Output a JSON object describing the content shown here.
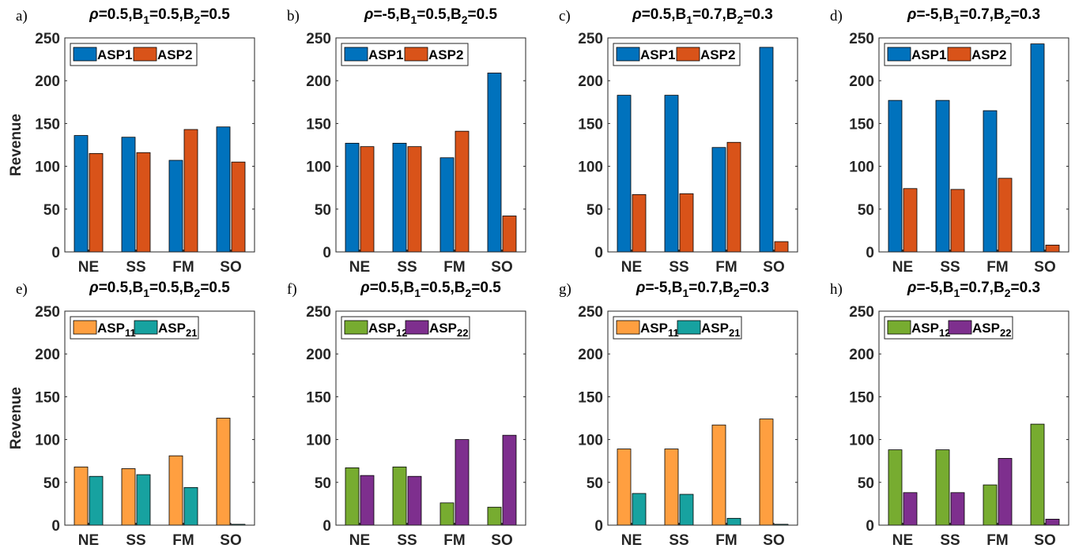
{
  "figure": {
    "ylabel": "Revenue",
    "categories": [
      "NE",
      "SS",
      "FM",
      "SO"
    ],
    "ylim": [
      0,
      250
    ],
    "yticks": [
      "0",
      "50",
      "100",
      "150",
      "200",
      "250"
    ]
  },
  "colors": {
    "ASP1": "#0072BD",
    "ASP2": "#D95319",
    "ASP11": "#FF9F40",
    "ASP21": "#17A2A0",
    "ASP12": "#77AC30",
    "ASP22": "#7E2F8E"
  },
  "chart_data": [
    {
      "panel": "a)",
      "type": "bar",
      "title_parts": [
        "ρ",
        "=0.5,B",
        "1",
        "=0.5,B",
        "2",
        "=0.5"
      ],
      "categories": [
        "NE",
        "SS",
        "FM",
        "SO"
      ],
      "series": [
        {
          "name": "ASP1",
          "sub": "",
          "color_key": "ASP1",
          "values": [
            136,
            134,
            107,
            146
          ]
        },
        {
          "name": "ASP2",
          "sub": "",
          "color_key": "ASP2",
          "values": [
            115,
            116,
            143,
            105
          ]
        }
      ],
      "ylim": [
        0,
        250
      ],
      "ylabel": "Revenue",
      "legend": "top-left"
    },
    {
      "panel": "b)",
      "type": "bar",
      "title_parts": [
        "ρ",
        "=-5,B",
        "1",
        "=0.5,B",
        "2",
        "=0.5"
      ],
      "categories": [
        "NE",
        "SS",
        "FM",
        "SO"
      ],
      "series": [
        {
          "name": "ASP1",
          "sub": "",
          "color_key": "ASP1",
          "values": [
            127,
            127,
            110,
            209
          ]
        },
        {
          "name": "ASP2",
          "sub": "",
          "color_key": "ASP2",
          "values": [
            123,
            123,
            141,
            42
          ]
        }
      ],
      "ylim": [
        0,
        250
      ],
      "legend": "top-left"
    },
    {
      "panel": "c)",
      "type": "bar",
      "title_parts": [
        "ρ",
        "=0.5,B",
        "1",
        "=0.7,B",
        "2",
        "=0.3"
      ],
      "categories": [
        "NE",
        "SS",
        "FM",
        "SO"
      ],
      "series": [
        {
          "name": "ASP1",
          "sub": "",
          "color_key": "ASP1",
          "values": [
            183,
            183,
            122,
            239
          ]
        },
        {
          "name": "ASP2",
          "sub": "",
          "color_key": "ASP2",
          "values": [
            67,
            68,
            128,
            12
          ]
        }
      ],
      "ylim": [
        0,
        250
      ],
      "legend": "top-left"
    },
    {
      "panel": "d)",
      "type": "bar",
      "title_parts": [
        "ρ",
        "=-5,B",
        "1",
        "=0.7,B",
        "2",
        "=0.3"
      ],
      "categories": [
        "NE",
        "SS",
        "FM",
        "SO"
      ],
      "series": [
        {
          "name": "ASP1",
          "sub": "",
          "color_key": "ASP1",
          "values": [
            177,
            177,
            165,
            243
          ]
        },
        {
          "name": "ASP2",
          "sub": "",
          "color_key": "ASP2",
          "values": [
            74,
            73,
            86,
            8
          ]
        }
      ],
      "ylim": [
        0,
        250
      ],
      "legend": "top-left"
    },
    {
      "panel": "e)",
      "type": "bar",
      "title_parts": [
        "ρ",
        "=0.5,B",
        "1",
        "=0.5,B",
        "2",
        "=0.5"
      ],
      "categories": [
        "NE",
        "SS",
        "FM",
        "SO"
      ],
      "series": [
        {
          "name": "ASP",
          "sub": "11",
          "color_key": "ASP11",
          "values": [
            68,
            66,
            81,
            125
          ]
        },
        {
          "name": "ASP",
          "sub": "21",
          "color_key": "ASP21",
          "values": [
            57,
            59,
            44,
            1
          ]
        }
      ],
      "ylim": [
        0,
        250
      ],
      "ylabel": "Revenue",
      "legend": "top-left"
    },
    {
      "panel": "f)",
      "type": "bar",
      "title_parts": [
        "ρ",
        "=0.5,B",
        "1",
        "=0.5,B",
        "2",
        "=0.5"
      ],
      "categories": [
        "NE",
        "SS",
        "FM",
        "SO"
      ],
      "series": [
        {
          "name": "ASP",
          "sub": "12",
          "color_key": "ASP12",
          "values": [
            67,
            68,
            26,
            21
          ]
        },
        {
          "name": "ASP",
          "sub": "22",
          "color_key": "ASP22",
          "values": [
            58,
            57,
            100,
            105
          ]
        }
      ],
      "ylim": [
        0,
        250
      ],
      "legend": "top-left"
    },
    {
      "panel": "g)",
      "type": "bar",
      "title_parts": [
        "ρ",
        "=-5,B",
        "1",
        "=0.7,B",
        "2",
        "=0.3"
      ],
      "categories": [
        "NE",
        "SS",
        "FM",
        "SO"
      ],
      "series": [
        {
          "name": "ASP",
          "sub": "11",
          "color_key": "ASP11",
          "values": [
            89,
            89,
            117,
            124
          ]
        },
        {
          "name": "ASP",
          "sub": "21",
          "color_key": "ASP21",
          "values": [
            37,
            36,
            8,
            1
          ]
        }
      ],
      "ylim": [
        0,
        250
      ],
      "legend": "top-left"
    },
    {
      "panel": "h)",
      "type": "bar",
      "title_parts": [
        "ρ",
        "=-5,B",
        "1",
        "=0.7,B",
        "2",
        "=0.3"
      ],
      "categories": [
        "NE",
        "SS",
        "FM",
        "SO"
      ],
      "series": [
        {
          "name": "ASP",
          "sub": "12",
          "color_key": "ASP12",
          "values": [
            88,
            88,
            47,
            118
          ]
        },
        {
          "name": "ASP",
          "sub": "22",
          "color_key": "ASP22",
          "values": [
            38,
            38,
            78,
            7
          ]
        }
      ],
      "ylim": [
        0,
        250
      ],
      "legend": "top-left"
    }
  ]
}
